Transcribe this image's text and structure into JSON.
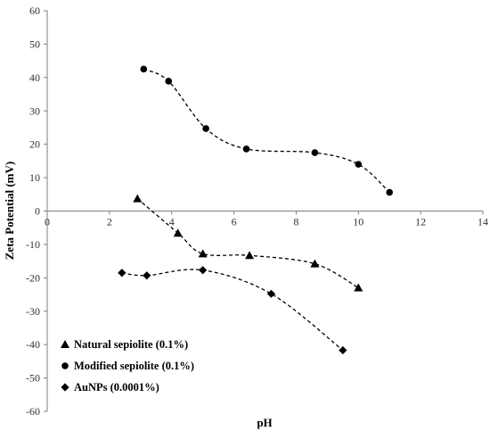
{
  "chart_data": {
    "type": "scatter",
    "title": "",
    "xlabel": "pH",
    "ylabel": "Zeta Potential (mV)",
    "xlim": [
      0,
      14
    ],
    "ylim": [
      -60,
      60
    ],
    "x_ticks": [
      "0",
      "2",
      "4",
      "6",
      "8",
      "10",
      "12",
      "14"
    ],
    "y_ticks": [
      "60",
      "50",
      "40",
      "30",
      "20",
      "10",
      "0",
      "-10",
      "-20",
      "-30",
      "-40",
      "-50",
      "-60"
    ],
    "grid": false,
    "trendlines": "dashed polynomial fit per series",
    "legend_position": "bottom-left",
    "series": [
      {
        "name": "Natural sepiolite (0.1%)",
        "marker": "triangle",
        "points": [
          [
            2.9,
            3.7
          ],
          [
            4.2,
            -6.6
          ],
          [
            5.0,
            -12.8
          ],
          [
            6.5,
            -13.3
          ],
          [
            8.6,
            -15.8
          ],
          [
            10.0,
            -23.0
          ]
        ]
      },
      {
        "name": "Modified sepiolite (0.1%)",
        "marker": "circle",
        "points": [
          [
            3.1,
            42.5
          ],
          [
            3.9,
            38.9
          ],
          [
            5.1,
            24.7
          ],
          [
            6.4,
            18.6
          ],
          [
            8.6,
            17.5
          ],
          [
            10.0,
            14.0
          ],
          [
            11.0,
            5.6
          ]
        ]
      },
      {
        "name": "AuNPs (0.0001%)",
        "marker": "diamond",
        "points": [
          [
            2.4,
            -18.5
          ],
          [
            3.2,
            -19.3
          ],
          [
            5.0,
            -17.7
          ],
          [
            7.2,
            -24.8
          ],
          [
            9.5,
            -41.7
          ]
        ]
      }
    ]
  }
}
